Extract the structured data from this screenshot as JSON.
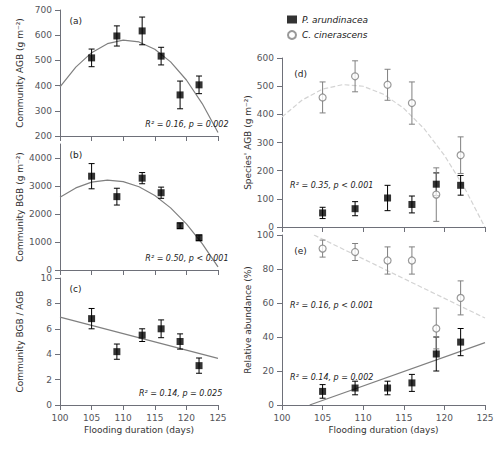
{
  "chart_data": [
    {
      "type": "scatter",
      "panel_label": "(a)",
      "ylabel": "Community AGB (g m⁻²)",
      "annotations": [
        "R² = 0.16, p = 0.002"
      ],
      "xlim": [
        100,
        125
      ],
      "xticks": [
        100,
        105,
        110,
        115,
        120,
        125
      ],
      "ylim": [
        200,
        700
      ],
      "yticks": [
        200,
        300,
        400,
        500,
        600,
        700
      ],
      "grid": false,
      "tick_labels": "y",
      "x": [
        105,
        109,
        113,
        116,
        119,
        122
      ],
      "series": [
        {
          "type": "scatter",
          "color": "black",
          "marker": "square",
          "values": [
            510,
            597,
            617,
            517,
            363,
            403
          ],
          "errors": [
            35,
            40,
            55,
            35,
            55,
            35
          ]
        },
        {
          "type": "line",
          "color": "gray",
          "line_style": "solid",
          "x": [
            100,
            102.5,
            105,
            107.5,
            110,
            112.5,
            115,
            117.5,
            120,
            122.5,
            125
          ],
          "values": [
            394.76,
            473.51,
            530.73,
            566.43,
            580.62,
            573.28,
            544.43,
            494.05,
            422.16,
            328.75,
            213.81
          ]
        }
      ]
    },
    {
      "type": "scatter",
      "panel_label": "(b)",
      "ylabel": "Community BGB (g m⁻²)",
      "annotations": [
        "R² = 0.50, p < 0.001"
      ],
      "xlim": [
        100,
        125
      ],
      "xticks": [
        100,
        105,
        110,
        115,
        120,
        125
      ],
      "ylim": [
        0,
        4500
      ],
      "yticks": [
        0,
        1000,
        2000,
        3000,
        4000
      ],
      "grid": false,
      "tick_labels": "y",
      "x": [
        105,
        109,
        113,
        116,
        119,
        122
      ],
      "series": [
        {
          "type": "scatter",
          "color": "black",
          "marker": "square",
          "values": [
            3350,
            2620,
            3280,
            2760,
            1580,
            1150
          ],
          "errors": [
            450,
            300,
            200,
            200,
            100,
            100
          ]
        },
        {
          "type": "line",
          "color": "gray",
          "line_style": "solid",
          "x": [
            100,
            102.5,
            105,
            107.5,
            110,
            112.5,
            115,
            117.5,
            120,
            122.5,
            125
          ],
          "values": [
            2597.81,
            2932.03,
            3136.79,
            3212.08,
            3157.9,
            2974.25,
            2661.13,
            2218.55,
            1646.49,
            944.97,
            113.98
          ]
        }
      ]
    },
    {
      "type": "scatter",
      "panel_label": "(c)",
      "ylabel": "Community BGB / AGB",
      "xlabel": "Flooding duration (days)",
      "annotations": [
        "R² = 0.14, p = 0.025"
      ],
      "xlim": [
        100,
        125
      ],
      "xticks": [
        100,
        105,
        110,
        115,
        120,
        125
      ],
      "ylim": [
        0,
        10
      ],
      "yticks": [
        0,
        2,
        4,
        6,
        8,
        10
      ],
      "grid": false,
      "x": [
        105,
        109,
        113,
        116,
        119,
        122
      ],
      "series": [
        {
          "type": "scatter",
          "color": "black",
          "marker": "square",
          "values": [
            6.8,
            4.2,
            5.5,
            6.0,
            5.0,
            3.1
          ],
          "errors": [
            0.8,
            0.6,
            0.5,
            0.7,
            0.6,
            0.6
          ]
        },
        {
          "type": "line",
          "color": "gray",
          "line_style": "solid",
          "x": [
            100,
            125
          ],
          "values": [
            6.913,
            3.676
          ]
        }
      ]
    },
    {
      "type": "scatter",
      "panel_label": "(d)",
      "ylabel": "Species' AGB (g m⁻²)",
      "annotations": [
        "R² = 0.35, p < 0.001"
      ],
      "xlim": [
        100,
        125
      ],
      "xticks": [
        100,
        105,
        110,
        115,
        120,
        125
      ],
      "ylim": [
        0,
        600
      ],
      "yticks": [
        0,
        100,
        200,
        300,
        400,
        500,
        600
      ],
      "grid": false,
      "tick_labels": "y",
      "legend": "top",
      "x": [
        105,
        109,
        113,
        116,
        119,
        122
      ],
      "series": [
        {
          "type": "scatter",
          "name": "P. arundinacea",
          "color": "black",
          "marker": "square",
          "values": [
            50,
            65,
            103,
            80,
            152,
            148
          ],
          "errors": [
            20,
            25,
            45,
            30,
            40,
            35
          ]
        },
        {
          "type": "scatter",
          "name": "C. cinerascens",
          "color": "gray",
          "marker": "open_circle",
          "values": [
            460,
            535,
            505,
            440,
            115,
            255
          ],
          "errors": [
            55,
            55,
            55,
            75,
            95,
            65
          ]
        },
        {
          "type": "line",
          "color": "lightgray",
          "line_style": "dashed",
          "x": [
            100,
            102.5,
            105,
            107.5,
            110,
            112.5,
            115,
            117.5,
            120,
            122.5,
            124.98
          ],
          "values": [
            390.67,
            451.12,
            489.44,
            505.61,
            499.64,
            471.53,
            421.28,
            348.9,
            254.37,
            137.7,
            0
          ]
        }
      ]
    },
    {
      "type": "scatter",
      "panel_label": "(e)",
      "ylabel": "Relative abundance (%)",
      "xlabel": "Flooding duration (days)",
      "annotations": [
        "R² = 0.16, p < 0.001",
        "R² = 0.14, p = 0.002"
      ],
      "xlim": [
        100,
        125
      ],
      "xticks": [
        100,
        105,
        110,
        115,
        120,
        125
      ],
      "ylim": [
        0,
        100
      ],
      "yticks": [
        0,
        20,
        40,
        60,
        80,
        100
      ],
      "grid": false,
      "x": [
        105,
        109,
        113,
        116,
        119,
        122
      ],
      "series": [
        {
          "type": "scatter",
          "name": "P. arundinacea",
          "color": "black",
          "marker": "square",
          "values": [
            8,
            10,
            10,
            13,
            30,
            37
          ],
          "errors": [
            4,
            4,
            4,
            5,
            10,
            8
          ]
        },
        {
          "type": "scatter",
          "name": "C. cinerascens",
          "color": "gray",
          "marker": "open_circle",
          "values": [
            92,
            90,
            85,
            85,
            45,
            63
          ],
          "errors": [
            5,
            5,
            8,
            8,
            12,
            10
          ]
        },
        {
          "type": "line",
          "color": "gray",
          "line_style": "solid",
          "x": [
            103.41,
            125
          ],
          "values": [
            0,
            36.7
          ]
        },
        {
          "type": "line",
          "color": "lightgray",
          "line_style": "dashed",
          "x": [
            103.94,
            125
          ],
          "values": [
            100,
            51.15
          ]
        }
      ]
    }
  ]
}
